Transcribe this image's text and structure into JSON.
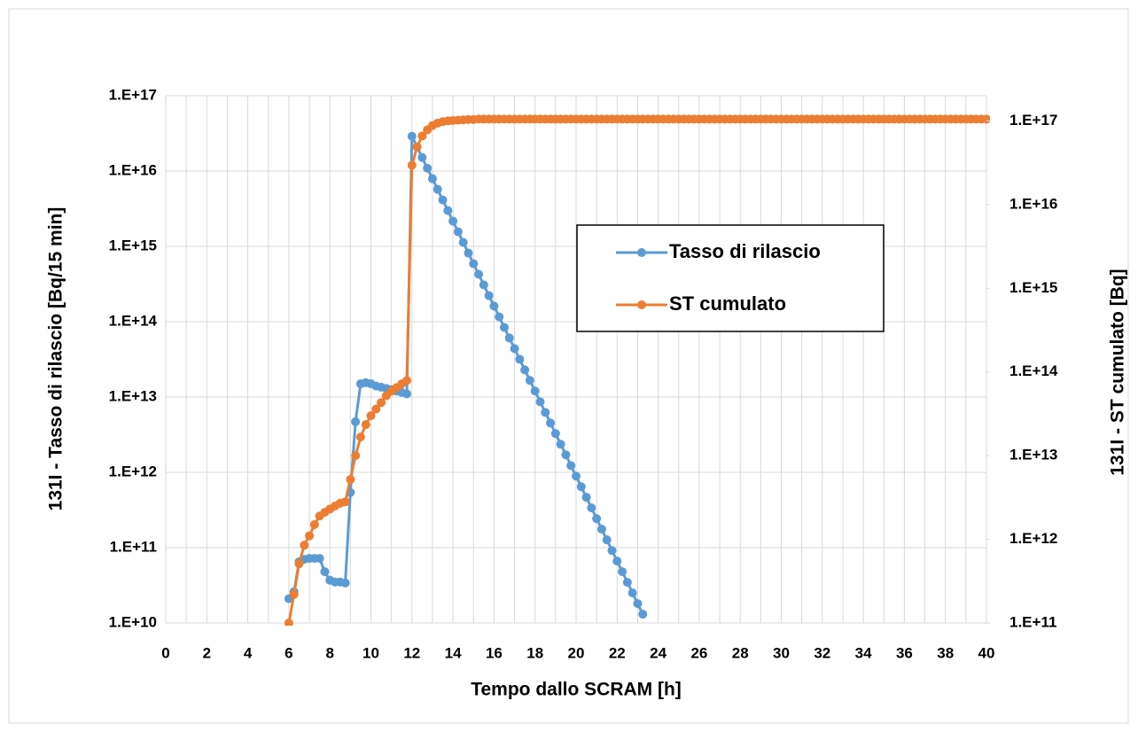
{
  "chart_data": {
    "type": "line",
    "x_label": "Tempo dallo SCRAM [h]",
    "y_label": "131I - Tasso di rilascio [Bq/15 min]",
    "y2_label": "131I - ST cumulato [Bq]",
    "xlim": [
      0,
      40
    ],
    "xticks": [
      0,
      2,
      4,
      6,
      8,
      10,
      12,
      14,
      16,
      18,
      20,
      22,
      24,
      26,
      28,
      30,
      32,
      34,
      36,
      38,
      40
    ],
    "ylim": [
      10000000000.0,
      1e+17
    ],
    "log_y": true,
    "yticks": [
      {
        "value": 10000000000.0,
        "label": "1.E+10"
      },
      {
        "value": 100000000000.0,
        "label": "1.E+11"
      },
      {
        "value": 1000000000000.0,
        "label": "1.E+12"
      },
      {
        "value": 10000000000000.0,
        "label": "1.E+13"
      },
      {
        "value": 100000000000000.0,
        "label": "1.E+14"
      },
      {
        "value": 1000000000000000.0,
        "label": "1.E+15"
      },
      {
        "value": 1e+16,
        "label": "1.E+16"
      },
      {
        "value": 1e+17,
        "label": "1.E+17"
      }
    ],
    "y2lim": [
      100000000000.0,
      2e+17
    ],
    "log_y2": true,
    "y2ticks": [
      {
        "value": 100000000000.0,
        "label": "1.E+11"
      },
      {
        "value": 1000000000000.0,
        "label": "1.E+12"
      },
      {
        "value": 10000000000000.0,
        "label": "1.E+13"
      },
      {
        "value": 100000000000000.0,
        "label": "1.E+14"
      },
      {
        "value": 1000000000000000.0,
        "label": "1.E+15"
      },
      {
        "value": 1e+16,
        "label": "1.E+16"
      },
      {
        "value": 1e+17,
        "label": "1.E+17"
      }
    ],
    "grid": true,
    "legend": "center-right",
    "x": [
      6,
      6.25,
      6.5,
      6.75,
      7,
      7.25,
      7.5,
      7.75,
      8,
      8.25,
      8.5,
      8.75,
      9,
      9.25,
      9.5,
      9.75,
      10,
      10.25,
      10.5,
      10.75,
      11,
      11.25,
      11.5,
      11.75,
      12,
      12.25,
      12.5,
      12.75,
      13,
      13.25,
      13.5,
      13.75,
      14,
      14.25,
      14.5,
      14.75,
      15,
      15.25,
      15.5,
      15.75,
      16,
      16.25,
      16.5,
      16.75,
      17,
      17.25,
      17.5,
      17.75,
      18,
      18.25,
      18.5,
      18.75,
      19,
      19.25,
      19.5,
      19.75,
      20,
      20.25,
      20.5,
      20.75,
      21,
      21.25,
      21.5,
      21.75,
      22,
      22.25,
      22.5,
      22.75,
      23,
      23.25,
      23.5,
      23.75,
      24,
      24.25,
      24.5,
      24.75,
      25,
      25.25,
      25.5,
      25.75,
      26,
      26.25,
      26.5,
      26.75,
      27,
      27.25,
      27.5,
      27.75,
      28,
      28.25,
      28.5,
      28.75,
      29,
      29.25,
      29.5,
      29.75,
      30,
      30.25,
      30.5,
      30.75,
      31,
      31.25,
      31.5,
      31.75,
      32,
      32.25,
      32.5,
      32.75,
      33,
      33.25,
      33.5,
      33.75,
      34,
      34.25,
      34.5,
      34.75,
      35,
      35.25,
      35.5,
      35.75,
      36,
      36.25,
      36.5,
      36.75,
      37,
      37.25,
      37.5,
      37.75,
      38,
      38.25,
      38.5,
      38.75,
      39,
      39.25,
      39.5,
      39.75,
      40
    ],
    "series": [
      {
        "name": "Tasso di rilascio",
        "color": "#5b9bd5",
        "axis": "y",
        "values": [
          21000000000.0,
          26000000000.0,
          65000000000.0,
          70000000000.0,
          72000000000.0,
          72000000000.0,
          72000000000.0,
          48000000000.0,
          37000000000.0,
          35000000000.0,
          35000000000.0,
          34000000000.0,
          540000000000.0,
          4700000000000.0,
          15000000000000.0,
          15500000000000.0,
          15000000000000.0,
          14000000000000.0,
          13500000000000.0,
          13000000000000.0,
          12500000000000.0,
          12000000000000.0,
          11500000000000.0,
          11000000000000.0,
          2.9e+16,
          2.09e+16,
          1.51e+16,
          1.09e+16,
          7910000000000000.0,
          5710000000000000.0,
          4130000000000000.0,
          2990000000000000.0,
          2160000000000000.0,
          1560000000000000.0,
          1130000000000000.0,
          815000000000000.0,
          589000000000000.0,
          426000000000000.0,
          308000000000000.0,
          222000000000000.0,
          161000000000000.0,
          116000000000000.0,
          83900000000000.0,
          60700000000000.0,
          43900000000000.0,
          31700000000000.0,
          22900000000000.0,
          16600000000000.0,
          12000000000000.0,
          8650000000000.0,
          6250000000000.0,
          4520000000000.0,
          3270000000000.0,
          2360000000000.0,
          1710000000000.0,
          1230000000000.0,
          891000000000.0,
          644000000000.0,
          466000000000.0,
          337000000000.0,
          243000000000.0,
          176000000000.0,
          127000000000.0,
          91800000000.0,
          66400000000.0,
          48000000000.0,
          34700000000.0,
          25100000000.0,
          18100000000.0,
          13100000000.0,
          null,
          null,
          null,
          null,
          null,
          null,
          null,
          null,
          null,
          null,
          null,
          null,
          null,
          null,
          null,
          null,
          null,
          null,
          null,
          null,
          null,
          null,
          null,
          null,
          null,
          null,
          null,
          null,
          null,
          null,
          null,
          null,
          null,
          null,
          null,
          null,
          null,
          null,
          null,
          null,
          null,
          null,
          null,
          null,
          null,
          null,
          null,
          null,
          null,
          null,
          null,
          null,
          null,
          null,
          null,
          null,
          null,
          null,
          null,
          null,
          null,
          null,
          null,
          null,
          null,
          null,
          null
        ]
      },
      {
        "name": "ST cumulato",
        "color": "#ed7d31",
        "axis": "y2",
        "values": [
          100000000000.0,
          220000000000.0,
          510000000000.0,
          850000000000.0,
          1100000000000.0,
          1500000000000.0,
          1900000000000.0,
          2100000000000.0,
          2300000000000.0,
          2500000000000.0,
          2700000000000.0,
          2800000000000.0,
          5200000000000.0,
          10000000000000.0,
          16700000000000.0,
          23500000000000.0,
          30000000000000.0,
          36000000000000.0,
          43000000000000.0,
          52000000000000.0,
          59000000000000.0,
          65000000000000.0,
          72000000000000.0,
          79000000000000.0,
          2.95e+16,
          4.9e+16,
          6.6e+16,
          7.8e+16,
          8.8e+16,
          9.4e+16,
          9.8e+16,
          1e+17,
          1.01e+17,
          1.02e+17,
          1.03e+17,
          1.04e+17,
          1.04e+17,
          1.05e+17,
          1.05e+17,
          1.05e+17,
          1.05e+17,
          1.05e+17,
          1.05e+17,
          1.05e+17,
          1.05e+17,
          1.05e+17,
          1.05e+17,
          1.05e+17,
          1.05e+17,
          1.05e+17,
          1.05e+17,
          1.05e+17,
          1.05e+17,
          1.05e+17,
          1.05e+17,
          1.05e+17,
          1.05e+17,
          1.05e+17,
          1.05e+17,
          1.05e+17,
          1.05e+17,
          1.05e+17,
          1.05e+17,
          1.05e+17,
          1.05e+17,
          1.05e+17,
          1.05e+17,
          1.05e+17,
          1.05e+17,
          1.05e+17,
          1.05e+17,
          1.05e+17,
          1.05e+17,
          1.05e+17,
          1.05e+17,
          1.05e+17,
          1.05e+17,
          1.05e+17,
          1.05e+17,
          1.05e+17,
          1.05e+17,
          1.05e+17,
          1.05e+17,
          1.05e+17,
          1.05e+17,
          1.05e+17,
          1.05e+17,
          1.05e+17,
          1.05e+17,
          1.05e+17,
          1.05e+17,
          1.05e+17,
          1.05e+17,
          1.05e+17,
          1.05e+17,
          1.05e+17,
          1.05e+17,
          1.05e+17,
          1.05e+17,
          1.05e+17,
          1.05e+17,
          1.05e+17,
          1.05e+17,
          1.05e+17,
          1.05e+17,
          1.05e+17,
          1.05e+17,
          1.05e+17,
          1.05e+17,
          1.05e+17,
          1.05e+17,
          1.05e+17,
          1.05e+17,
          1.05e+17,
          1.05e+17,
          1.05e+17,
          1.05e+17,
          1.05e+17,
          1.05e+17,
          1.05e+17,
          1.05e+17,
          1.05e+17,
          1.05e+17,
          1.05e+17,
          1.05e+17,
          1.05e+17,
          1.05e+17,
          1.05e+17,
          1.05e+17,
          1.05e+17,
          1.05e+17,
          1.05e+17,
          1.05e+17,
          1.05e+17,
          1.05e+17,
          1.05e+17,
          1.05e+17
        ]
      }
    ]
  }
}
